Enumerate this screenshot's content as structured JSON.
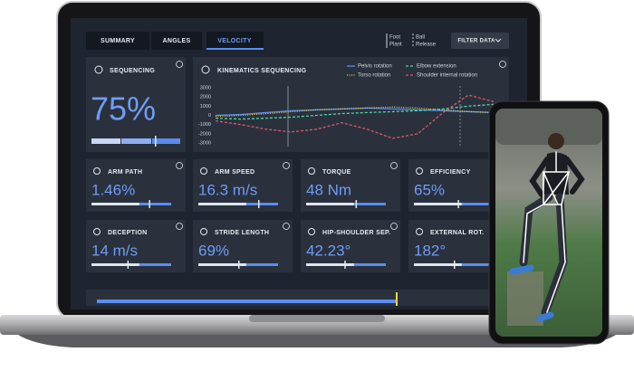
{
  "tabs": [
    "SUMMARY",
    "ANGLES",
    "VELOCITY"
  ],
  "markers": [
    {
      "lines": [
        "Foot",
        "Plant"
      ]
    },
    {
      "lines": [
        "Ball",
        "Release"
      ]
    }
  ],
  "filter_button": "FILTER DATA",
  "sequencing": {
    "title": "SEQUENCING",
    "value": "75%"
  },
  "kinematics": {
    "title": "KINEMATICS SEQUENCING",
    "ylim": [
      -3000,
      3000
    ],
    "yticks": [
      3000,
      2000,
      1000,
      0,
      -1000,
      -2000,
      -3000
    ],
    "series": [
      {
        "name": "Pelvis rotation",
        "color": "#5b8def",
        "values": [
          0,
          100,
          300,
          500,
          600,
          700,
          800,
          700,
          600,
          500,
          400,
          300
        ]
      },
      {
        "name": "Torso rotation",
        "color": "#e8d44d",
        "values": [
          -100,
          0,
          200,
          400,
          600,
          700,
          800,
          900,
          800,
          600,
          400,
          300
        ]
      },
      {
        "name": "Elbow extension",
        "color": "#4ed6a8",
        "values": [
          -300,
          -400,
          -300,
          -200,
          0,
          200,
          300,
          400,
          500,
          700,
          1000,
          1200
        ]
      },
      {
        "name": "Shoulder internal rotation",
        "color": "#e0566b",
        "values": [
          -600,
          -1000,
          -1500,
          -1800,
          -1500,
          -800,
          -1500,
          -2500,
          -2000,
          300,
          2200,
          1500
        ]
      }
    ]
  },
  "metrics": [
    {
      "label": "ARM PATH",
      "value": "1.46%"
    },
    {
      "label": "ARM SPEED",
      "value": "16.3 m/s"
    },
    {
      "label": "TORQUE",
      "value": "48 Nm"
    },
    {
      "label": "EFFICIENCY",
      "value": "65%"
    },
    {
      "label": "DECEPTION",
      "value": "14 m/s"
    },
    {
      "label": "STRIDE LENGTH",
      "value": "69%"
    },
    {
      "label": "HIP-SHOULDER SEP.",
      "value": "42.23°"
    },
    {
      "label": "EXTERNAL ROT.",
      "value": "182°"
    }
  ]
}
